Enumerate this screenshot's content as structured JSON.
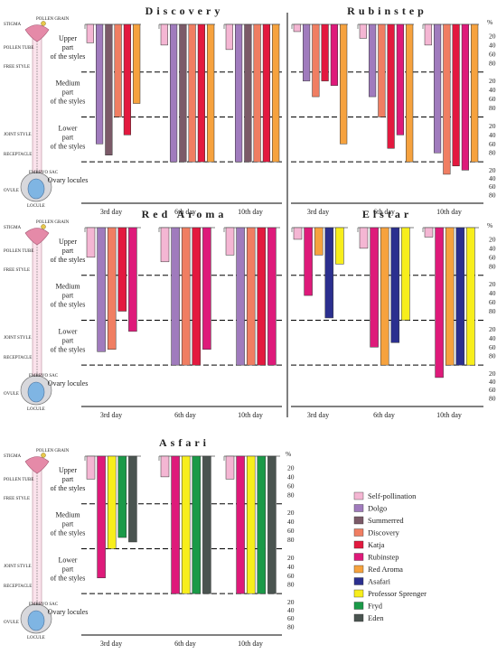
{
  "chart_data": [
    {
      "type": "bar",
      "title": "Discovery",
      "days": [
        "3rd day",
        "6th day",
        "10th day"
      ],
      "series": [
        {
          "name": "Self-pollination",
          "values": [
            35,
            40,
            50
          ]
        },
        {
          "name": "Dolgo",
          "values": [
            260,
            300,
            300
          ]
        },
        {
          "name": "Summerred",
          "values": [
            285,
            300,
            300
          ]
        },
        {
          "name": "Discovery",
          "values": [
            200,
            300,
            300
          ]
        },
        {
          "name": "Katja",
          "values": [
            240,
            300,
            300
          ]
        },
        {
          "name": "Red Aroma",
          "values": [
            170,
            300,
            300
          ]
        }
      ]
    },
    {
      "type": "bar",
      "title": "Rubinstep",
      "days": [
        "3rd day",
        "6th day",
        "10th day"
      ],
      "series": [
        {
          "name": "Self-pollination",
          "values": [
            10,
            25,
            40
          ]
        },
        {
          "name": "Dolgo",
          "values": [
            120,
            155,
            280
          ]
        },
        {
          "name": "Discovery",
          "values": [
            155,
            200,
            330
          ]
        },
        {
          "name": "Katja",
          "values": [
            120,
            270,
            310
          ]
        },
        {
          "name": "Rubinstep",
          "values": [
            130,
            240,
            320
          ]
        },
        {
          "name": "Red Aroma",
          "values": [
            260,
            300,
            300
          ]
        }
      ]
    },
    {
      "type": "bar",
      "title": "Red Aroma",
      "days": [
        "3rd day",
        "6th day",
        "10th day"
      ],
      "series": [
        {
          "name": "Self-pollination",
          "values": [
            60,
            70,
            55
          ]
        },
        {
          "name": "Dolgo",
          "values": [
            270,
            300,
            300
          ]
        },
        {
          "name": "Discovery",
          "values": [
            265,
            300,
            300
          ]
        },
        {
          "name": "Katja",
          "values": [
            180,
            300,
            300
          ]
        },
        {
          "name": "Rubinstep",
          "values": [
            225,
            265,
            300
          ]
        }
      ]
    },
    {
      "type": "bar",
      "title": "Elstar",
      "days": [
        "3rd day",
        "6th day",
        "10th day"
      ],
      "series": [
        {
          "name": "Self-pollination",
          "values": [
            20,
            40,
            15
          ]
        },
        {
          "name": "Rubinstep",
          "values": [
            145,
            260,
            330
          ]
        },
        {
          "name": "Red Aroma",
          "values": [
            55,
            300,
            300
          ]
        },
        {
          "name": "Asafari",
          "values": [
            195,
            250,
            300
          ]
        },
        {
          "name": "Professor Sprenger",
          "values": [
            75,
            200,
            300
          ]
        }
      ]
    },
    {
      "type": "bar",
      "title": "Asfari",
      "days": [
        "3rd day",
        "6th day",
        "10th day"
      ],
      "series": [
        {
          "name": "Self-pollination",
          "values": [
            45,
            40,
            45
          ]
        },
        {
          "name": "Rubinstep",
          "values": [
            265,
            300,
            300
          ]
        },
        {
          "name": "Professor Sprenger",
          "values": [
            200,
            300,
            300
          ]
        },
        {
          "name": "Fryd",
          "values": [
            175,
            300,
            300
          ]
        },
        {
          "name": "Eden",
          "values": [
            185,
            300,
            300
          ]
        }
      ]
    }
  ],
  "zones": [
    "Upper part of the styles",
    "Medium part of the styles",
    "Lower part of the styles",
    "Ovary locules"
  ],
  "percent_label": "%",
  "percent_ticks": [
    "20",
    "40",
    "60",
    "80"
  ],
  "flower_labels": [
    "STIGMA",
    "POLLEN GRAIN",
    "POLLEN TUBE",
    "FREE STYLE",
    "JOINT STYLE",
    "RECEPTACLE",
    "OVULE",
    "EMBRYO SAC",
    "LOCULE"
  ],
  "legend": [
    {
      "label": "Self-pollination",
      "color": "#f4b6d3"
    },
    {
      "label": "Dolgo",
      "color": "#a07bbd"
    },
    {
      "label": "Summerred",
      "color": "#7b5a68"
    },
    {
      "label": "Discovery",
      "color": "#f07e62"
    },
    {
      "label": "Katja",
      "color": "#e3193f"
    },
    {
      "label": "Rubinstep",
      "color": "#de1a7a"
    },
    {
      "label": "Red Aroma",
      "color": "#f6a23e"
    },
    {
      "label": "Asafari",
      "color": "#2b2f8f"
    },
    {
      "label": "Professor Sprenger",
      "color": "#f7ee1c"
    },
    {
      "label": "Fryd",
      "color": "#1a9a48"
    },
    {
      "label": "Eden",
      "color": "#4a5450"
    }
  ]
}
